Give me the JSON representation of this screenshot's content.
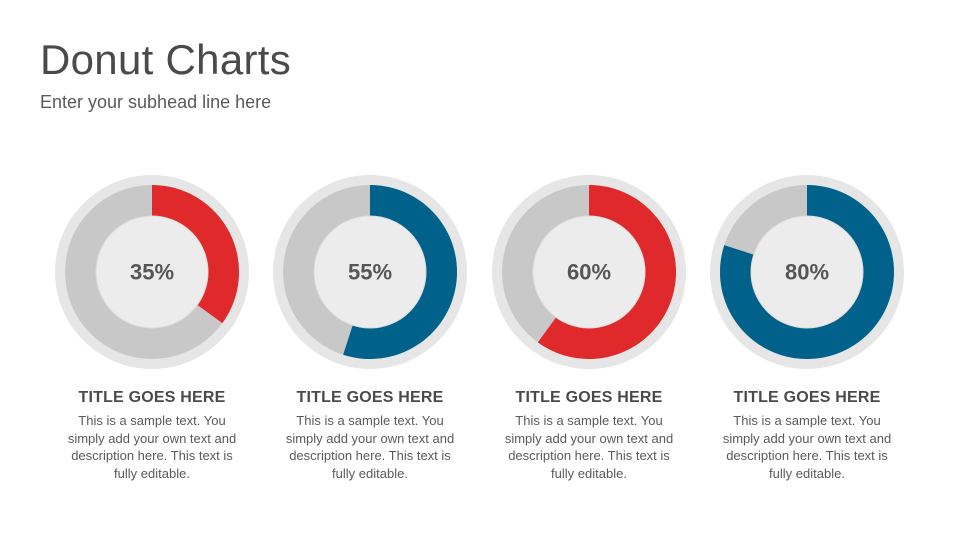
{
  "header": {
    "title": "Donut Charts",
    "subtitle": "Enter your subhead line here"
  },
  "colors": {
    "red": "#e0292b",
    "blue": "#00628b",
    "track": "#c8c8c8",
    "outer_ring": "#e6e6e6",
    "center": "#ececec",
    "label": "#555555"
  },
  "chart_data": [
    {
      "type": "pie",
      "value_percent": 35,
      "label": "35%",
      "color": "red",
      "title": "TITLE GOES HERE",
      "description": "This is a sample text. You simply add your own text and description here. This text is fully editable."
    },
    {
      "type": "pie",
      "value_percent": 55,
      "label": "55%",
      "color": "blue",
      "title": "TITLE GOES HERE",
      "description": "This is a sample text. You simply add your own text and description here. This text is fully editable."
    },
    {
      "type": "pie",
      "value_percent": 60,
      "label": "60%",
      "color": "red",
      "title": "TITLE GOES HERE",
      "description": "This is a sample text. You simply add your own text and description here. This text is fully editable."
    },
    {
      "type": "pie",
      "value_percent": 80,
      "label": "80%",
      "color": "blue",
      "title": "TITLE GOES HERE",
      "description": "This is a sample text. You simply add your own text and description here. This text is fully editable."
    }
  ]
}
